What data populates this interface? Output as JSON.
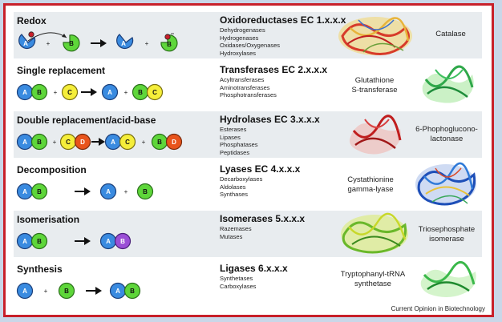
{
  "footer": "Current Opinion in Biotechnology",
  "rows": [
    {
      "title": "Redox",
      "equation": {
        "left": [
          "A",
          "B"
        ],
        "right": [
          "A",
          "B"
        ]
      },
      "enzyme_class": "Oxidoreductases EC 1.x.x.x",
      "subclasses": [
        "Dehydrogenases",
        "Hydrogenases",
        "Oxidases/Oxygenases",
        "Hydroxylases"
      ],
      "example": [
        "Catalase"
      ]
    },
    {
      "title": "Single replacement",
      "equation": {
        "left": [
          "A",
          "B",
          "C"
        ],
        "right": [
          "A",
          "B",
          "C"
        ]
      },
      "enzyme_class": "Transferases EC 2.x.x.x",
      "subclasses": [
        "Acyltransferases",
        "Aminotransferases",
        "Phosphotransferases"
      ],
      "example": [
        "Glutathione",
        "S-transferase"
      ]
    },
    {
      "title": "Double replacement/acid-base",
      "equation": {
        "left": [
          "A",
          "B",
          "C",
          "D"
        ],
        "right": [
          "A",
          "C",
          "B",
          "D"
        ]
      },
      "enzyme_class": "Hydrolases EC 3.x.x.x",
      "subclasses": [
        "Esterases",
        "Lipases",
        "Phosphatases",
        "Peptidases"
      ],
      "example": [
        "6-Phophoglucono-",
        "lactonase"
      ]
    },
    {
      "title": "Decomposition",
      "equation": {
        "left": [
          "A",
          "B"
        ],
        "right": [
          "A",
          "B"
        ]
      },
      "enzyme_class": "Lyases EC 4.x.x.x",
      "subclasses": [
        "Decarboxylases",
        "Aldolases",
        "Synthases"
      ],
      "example": [
        "Cystathionine",
        "gamma-lyase"
      ]
    },
    {
      "title": "Isomerisation",
      "equation": {
        "left": [
          "A",
          "B"
        ],
        "right": [
          "A",
          "B"
        ]
      },
      "enzyme_class": "Isomerases 5.x.x.x",
      "subclasses": [
        "Razemases",
        "Mutases"
      ],
      "example": [
        "Triosephosphate",
        "isomerase"
      ]
    },
    {
      "title": "Synthesis",
      "equation": {
        "left": [
          "A",
          "B"
        ],
        "right": [
          "A",
          "B"
        ]
      },
      "enzyme_class": "Ligases 6.x.x.x",
      "subclasses": [
        "Synthetases",
        "Carboxylases"
      ],
      "example": [
        "Tryptophanyl-tRNA",
        "synthetase"
      ]
    }
  ],
  "colors": {
    "A": "#3a8be0",
    "B": "#5ed63a",
    "C": "#f5ee3a",
    "D": "#e8541c",
    "B_isomer": "#9b4fd6",
    "frame": "#c8202a",
    "redox_group": "#c8202a"
  }
}
